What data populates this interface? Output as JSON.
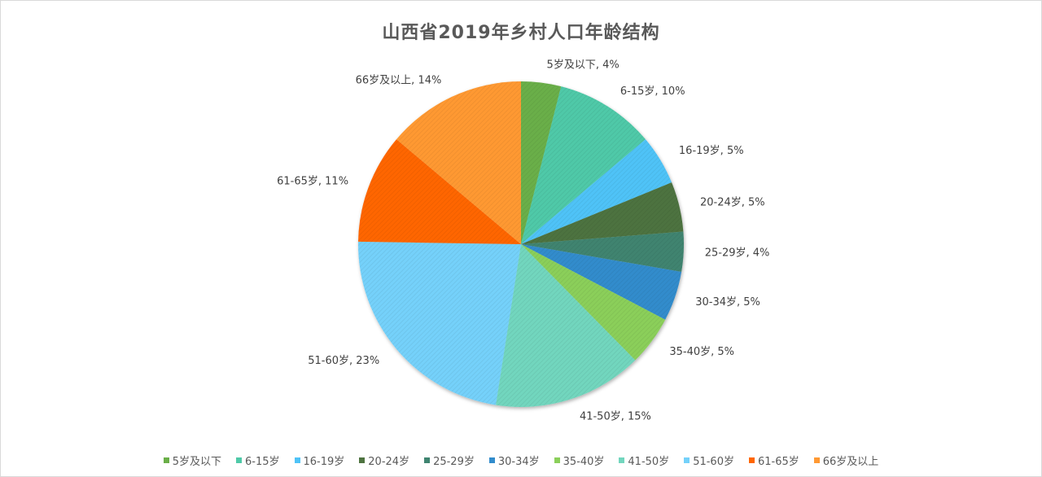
{
  "chart_data": {
    "type": "pie",
    "title": "山西省2019年乡村人口年龄结构",
    "start_angle": "top, clockwise",
    "legend_position": "bottom",
    "slices": [
      {
        "label": "5岁及以下",
        "value": 4,
        "text": "5岁及以下, 4%",
        "color": "#6aaf48"
      },
      {
        "label": "6-15岁",
        "value": 10,
        "text": "6-15岁, 10%",
        "color": "#4fc9a8"
      },
      {
        "label": "16-19岁",
        "value": 5,
        "text": "16-19岁, 5%",
        "color": "#4fc3f7"
      },
      {
        "label": "20-24岁",
        "value": 5,
        "text": "20-24岁, 5%",
        "color": "#4e7340"
      },
      {
        "label": "25-29岁",
        "value": 4,
        "text": "25-29岁, 4%",
        "color": "#3f8470"
      },
      {
        "label": "30-34岁",
        "value": 5,
        "text": "30-34岁, 5%",
        "color": "#328ccc"
      },
      {
        "label": "35-40岁",
        "value": 5,
        "text": "35-40岁, 5%",
        "color": "#8bcf5a"
      },
      {
        "label": "41-50岁",
        "value": 15,
        "text": "41-50岁, 15%",
        "color": "#72d6be"
      },
      {
        "label": "51-60岁",
        "value": 23,
        "text": "51-60岁, 23%",
        "color": "#74d1fa"
      },
      {
        "label": "61-65岁",
        "value": 11,
        "text": "61-65岁, 11%",
        "color": "#ff6600"
      },
      {
        "label": "66岁及以上",
        "value": 14,
        "text": "66岁及以上, 14%",
        "color": "#ff9933"
      }
    ]
  }
}
